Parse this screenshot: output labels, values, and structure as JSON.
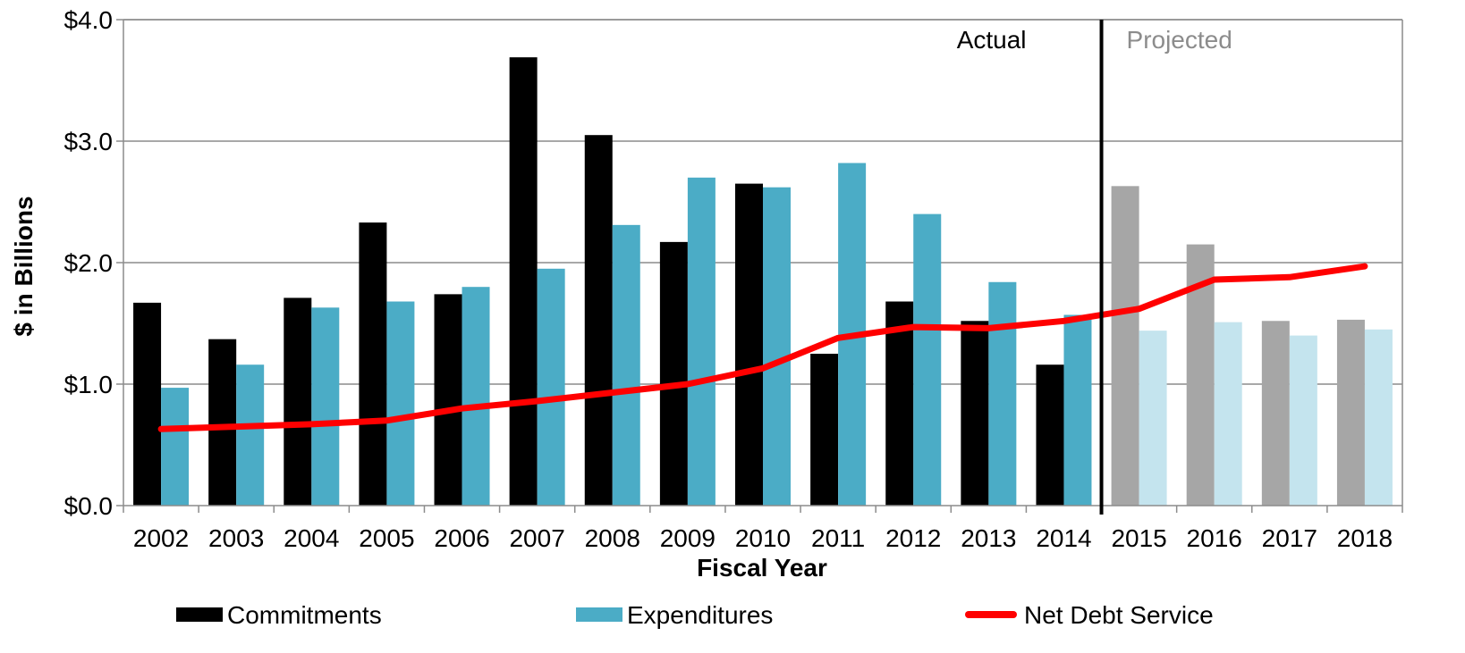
{
  "chart_data": {
    "type": "bar",
    "categories": [
      "2002",
      "2003",
      "2004",
      "2005",
      "2006",
      "2007",
      "2008",
      "2009",
      "2010",
      "2011",
      "2012",
      "2013",
      "2014",
      "2015",
      "2016",
      "2017",
      "2018"
    ],
    "xlabel": "Fiscal Year",
    "ylabel": "$ in Billions",
    "ylim": [
      0,
      4
    ],
    "yticks": [
      0,
      1,
      2,
      3,
      4
    ],
    "ytick_labels": [
      "$0.0",
      "$1.0",
      "$2.0",
      "$3.0",
      "$4.0"
    ],
    "grid": true,
    "legend_position": "bottom",
    "regions": [
      {
        "label": "Actual",
        "color": "#000000"
      },
      {
        "label": "Projected",
        "color": "#8c8c8c"
      }
    ],
    "projected_from_index": 13,
    "series": [
      {
        "name": "Commitments",
        "kind": "bar",
        "color": "#000000",
        "projected_color": "#a6a6a6",
        "values": [
          1.67,
          1.37,
          1.71,
          2.33,
          1.74,
          3.69,
          3.05,
          2.17,
          2.65,
          1.25,
          1.68,
          1.52,
          1.16,
          2.63,
          2.15,
          1.52,
          1.53
        ]
      },
      {
        "name": "Expenditures",
        "kind": "bar",
        "color": "#4bacc6",
        "projected_color": "#c4e4ee",
        "values": [
          0.97,
          1.16,
          1.63,
          1.68,
          1.8,
          1.95,
          2.31,
          2.7,
          2.62,
          2.82,
          2.4,
          1.84,
          1.57,
          1.44,
          1.51,
          1.4,
          1.45
        ]
      },
      {
        "name": "Net Debt Service",
        "kind": "line",
        "color": "#ff0000",
        "values": [
          0.63,
          0.65,
          0.67,
          0.7,
          0.8,
          0.86,
          0.93,
          1.0,
          1.13,
          1.38,
          1.47,
          1.46,
          1.52,
          1.62,
          1.86,
          1.88,
          1.97
        ]
      }
    ]
  }
}
